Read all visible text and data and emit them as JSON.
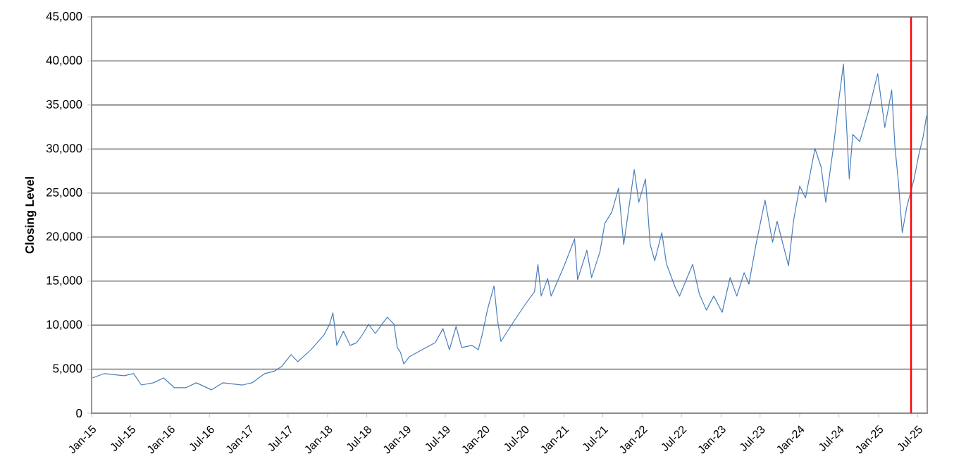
{
  "chart_data": {
    "type": "line",
    "ylabel": "Closing Level",
    "color": "#4a7ebb",
    "grid": "y",
    "x": [
      "2015-01-05",
      "2015-03-01",
      "2015-06-01",
      "2015-07-15",
      "2015-08-20",
      "2015-10-15",
      "2015-12-01",
      "2016-01-20",
      "2016-03-15",
      "2016-05-01",
      "2016-07-10",
      "2016-09-01",
      "2016-12-01",
      "2017-01-15",
      "2017-03-15",
      "2017-05-01",
      "2017-06-01",
      "2017-07-15",
      "2017-08-15",
      "2017-10-15",
      "2017-12-15",
      "2018-01-10",
      "2018-01-25",
      "2018-02-05",
      "2018-02-12",
      "2018-03-15",
      "2018-04-15",
      "2018-05-15",
      "2018-06-15",
      "2018-07-10",
      "2018-08-10",
      "2018-09-10",
      "2018-10-05",
      "2018-11-05",
      "2018-11-20",
      "2018-12-05",
      "2018-12-20",
      "2019-01-15",
      "2019-03-15",
      "2019-05-15",
      "2019-06-20",
      "2019-07-20",
      "2019-08-20",
      "2019-09-15",
      "2019-11-01",
      "2019-12-01",
      "2019-12-20",
      "2020-01-12",
      "2020-02-12",
      "2020-02-28",
      "2020-03-15",
      "2020-05-20",
      "2020-07-03",
      "2020-08-18",
      "2020-09-03",
      "2020-09-18",
      "2020-10-18",
      "2020-11-03",
      "2021-01-03",
      "2021-02-20",
      "2021-03-06",
      "2021-04-18",
      "2021-05-10",
      "2021-06-18",
      "2021-07-10",
      "2021-08-12",
      "2021-09-12",
      "2021-10-06",
      "2021-11-24",
      "2021-12-15",
      "2022-01-15",
      "2022-02-06",
      "2022-02-27",
      "2022-04-01",
      "2022-04-22",
      "2022-06-01",
      "2022-06-22",
      "2022-08-22",
      "2022-09-22",
      "2022-10-25",
      "2022-11-28",
      "2023-01-06",
      "2023-02-12",
      "2023-03-15",
      "2023-04-18",
      "2023-05-10",
      "2023-06-12",
      "2023-07-24",
      "2023-08-28",
      "2023-09-18",
      "2023-11-10",
      "2023-12-03",
      "2024-01-01",
      "2024-01-28",
      "2024-03-12",
      "2024-04-10",
      "2024-05-01",
      "2024-06-06",
      "2024-07-01",
      "2024-07-22",
      "2024-08-18",
      "2024-09-03",
      "2024-10-06",
      "2024-11-18",
      "2024-12-28",
      "2025-01-30",
      "2025-03-03",
      "2025-03-18",
      "2025-04-03",
      "2025-04-21",
      "2025-05-12",
      "2025-06-15",
      "2025-07-06",
      "2025-07-27",
      "2025-08-12"
    ],
    "values": [
      4000,
      4500,
      4250,
      4500,
      3200,
      3450,
      4000,
      2900,
      2900,
      3450,
      2650,
      3450,
      3200,
      3450,
      4500,
      4800,
      5300,
      6650,
      5850,
      7200,
      8900,
      10100,
      11400,
      9300,
      7700,
      9300,
      7700,
      8000,
      9050,
      10100,
      9050,
      10100,
      10900,
      10100,
      7450,
      6900,
      5600,
      6400,
      7200,
      8000,
      9600,
      7200,
      9850,
      7450,
      7700,
      7200,
      9000,
      11700,
      14450,
      10650,
      8150,
      10650,
      12250,
      13800,
      16900,
      13300,
      15300,
      13300,
      16750,
      19800,
      15150,
      18500,
      15400,
      18350,
      21550,
      22850,
      25550,
      19150,
      27650,
      23950,
      26600,
      19150,
      17300,
      20500,
      17000,
      14350,
      13300,
      16900,
      13550,
      11700,
      13300,
      11450,
      15400,
      13300,
      15950,
      14650,
      19150,
      24200,
      19400,
      21800,
      16750,
      21800,
      25800,
      24450,
      30050,
      27900,
      23950,
      30300,
      35650,
      39650,
      26600,
      31650,
      30850,
      34550,
      38550,
      32450,
      36700,
      30300,
      26300,
      20500,
      23400,
      26600,
      29250,
      31400,
      33800
    ],
    "xlim": [
      "2015-01-01",
      "2025-08-15"
    ],
    "xticks": [
      {
        "value": "2015-01-01",
        "label": "Jan-15"
      },
      {
        "value": "2015-07-01",
        "label": "Jul-15"
      },
      {
        "value": "2016-01-01",
        "label": "Jan-16"
      },
      {
        "value": "2016-07-01",
        "label": "Jul-16"
      },
      {
        "value": "2017-01-01",
        "label": "Jan-17"
      },
      {
        "value": "2017-07-01",
        "label": "Jul-17"
      },
      {
        "value": "2018-01-01",
        "label": "Jan-18"
      },
      {
        "value": "2018-07-01",
        "label": "Jul-18"
      },
      {
        "value": "2019-01-01",
        "label": "Jan-19"
      },
      {
        "value": "2019-07-01",
        "label": "Jul-19"
      },
      {
        "value": "2020-01-01",
        "label": "Jan-20"
      },
      {
        "value": "2020-07-01",
        "label": "Jul-20"
      },
      {
        "value": "2021-01-01",
        "label": "Jan-21"
      },
      {
        "value": "2021-07-01",
        "label": "Jul-21"
      },
      {
        "value": "2022-01-01",
        "label": "Jan-22"
      },
      {
        "value": "2022-07-01",
        "label": "Jul-22"
      },
      {
        "value": "2023-01-01",
        "label": "Jan-23"
      },
      {
        "value": "2023-07-01",
        "label": "Jul-23"
      },
      {
        "value": "2024-01-01",
        "label": "Jan-24"
      },
      {
        "value": "2024-07-01",
        "label": "Jul-24"
      },
      {
        "value": "2025-01-01",
        "label": "Jan-25"
      },
      {
        "value": "2025-07-01",
        "label": "Jul-25"
      }
    ],
    "ylim": [
      0,
      45000
    ],
    "yticks": [
      0,
      {
        "value": 5000,
        "label": "5,000"
      },
      {
        "value": 10000,
        "label": "10,000"
      },
      {
        "value": 15000,
        "label": "15,000"
      },
      {
        "value": 20000,
        "label": "20,000"
      },
      {
        "value": 25000,
        "label": "25,000"
      },
      {
        "value": 30000,
        "label": "30,000"
      },
      {
        "value": 35000,
        "label": "35,000"
      },
      {
        "value": 40000,
        "label": "40,000"
      },
      {
        "value": 45000,
        "label": "45,000"
      }
    ],
    "ref_lines": [
      {
        "axis": "x",
        "value": "2025-06-01",
        "color": "#ff0000"
      }
    ]
  }
}
